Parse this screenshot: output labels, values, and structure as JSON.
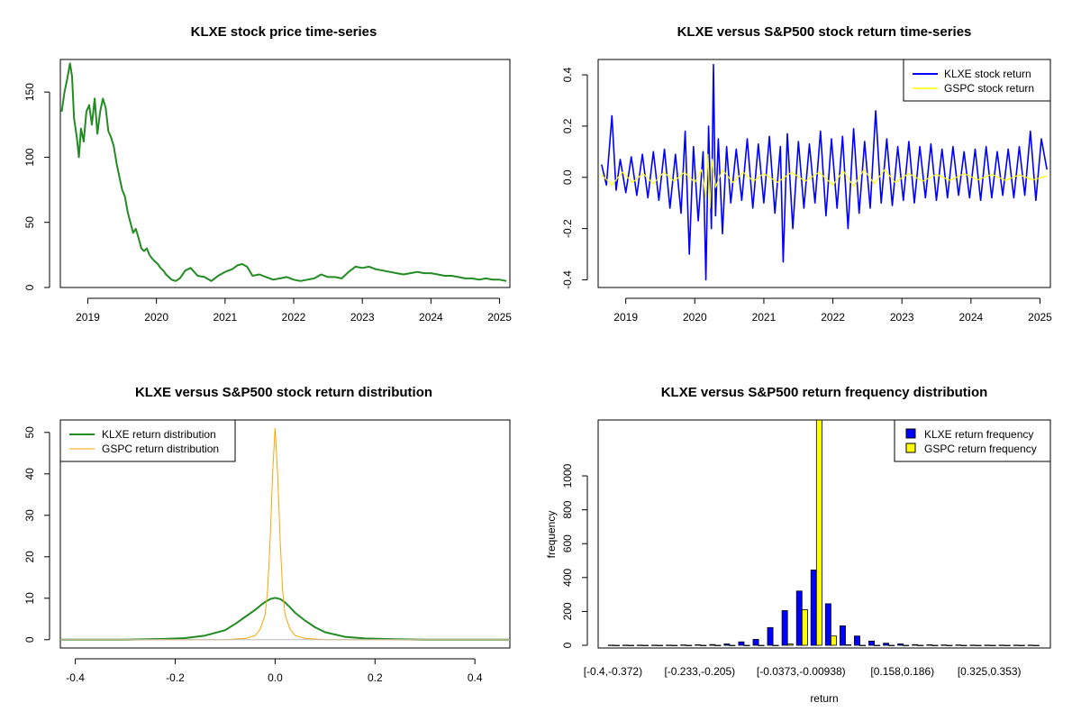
{
  "chart_data": [
    {
      "type": "line",
      "title": "KLXE stock price time-series",
      "xlabel": "",
      "ylabel": "",
      "x_tick_labels": [
        "2019",
        "2020",
        "2021",
        "2022",
        "2023",
        "2024",
        "2025"
      ],
      "x_tick_values": [
        2019,
        2020,
        2021,
        2022,
        2023,
        2024,
        2025
      ],
      "y_tick_labels": [
        "0",
        "50",
        "100",
        "150"
      ],
      "y_tick_values": [
        0,
        50,
        100,
        150
      ],
      "xlim": [
        2018.6,
        2025.15
      ],
      "ylim": [
        0,
        175
      ],
      "series": [
        {
          "color": "#228B22",
          "x": [
            2018.62,
            2018.66,
            2018.7,
            2018.74,
            2018.77,
            2018.8,
            2018.84,
            2018.87,
            2018.9,
            2018.94,
            2018.98,
            2019.02,
            2019.06,
            2019.1,
            2019.14,
            2019.18,
            2019.22,
            2019.26,
            2019.3,
            2019.34,
            2019.38,
            2019.42,
            2019.46,
            2019.5,
            2019.54,
            2019.58,
            2019.62,
            2019.66,
            2019.7,
            2019.74,
            2019.78,
            2019.82,
            2019.86,
            2019.9,
            2019.94,
            2019.98,
            2020.02,
            2020.06,
            2020.1,
            2020.14,
            2020.18,
            2020.22,
            2020.28,
            2020.34,
            2020.42,
            2020.5,
            2020.6,
            2020.7,
            2020.8,
            2020.9,
            2021.0,
            2021.1,
            2021.18,
            2021.25,
            2021.32,
            2021.4,
            2021.5,
            2021.6,
            2021.7,
            2021.8,
            2021.9,
            2022.0,
            2022.1,
            2022.2,
            2022.3,
            2022.4,
            2022.5,
            2022.6,
            2022.7,
            2022.8,
            2022.9,
            2023.0,
            2023.1,
            2023.2,
            2023.3,
            2023.4,
            2023.5,
            2023.6,
            2023.7,
            2023.8,
            2023.9,
            2024.0,
            2024.1,
            2024.2,
            2024.3,
            2024.4,
            2024.5,
            2024.6,
            2024.7,
            2024.8,
            2024.9,
            2025.0,
            2025.1
          ],
          "y": [
            135,
            150,
            160,
            172,
            162,
            130,
            115,
            100,
            122,
            112,
            135,
            140,
            125,
            145,
            118,
            135,
            145,
            138,
            120,
            115,
            108,
            95,
            85,
            75,
            70,
            58,
            50,
            42,
            45,
            38,
            30,
            28,
            30,
            25,
            22,
            20,
            18,
            15,
            13,
            10,
            8,
            6,
            5,
            7,
            13,
            15,
            9,
            8,
            5,
            9,
            12,
            14,
            17,
            18,
            16,
            9,
            10,
            8,
            6,
            7,
            8,
            6,
            5,
            6,
            7,
            10,
            8,
            8,
            7,
            12,
            16,
            15,
            16,
            14,
            13,
            12,
            11,
            10,
            11,
            12,
            11,
            11,
            10,
            9,
            9,
            8,
            7,
            7,
            6,
            7,
            6,
            6,
            5
          ]
        }
      ]
    },
    {
      "type": "line",
      "title": "KLXE versus S&P500 stock return time-series",
      "xlabel": "",
      "ylabel": "",
      "x_tick_labels": [
        "2019",
        "2020",
        "2021",
        "2022",
        "2023",
        "2024",
        "2025"
      ],
      "x_tick_values": [
        2019,
        2020,
        2021,
        2022,
        2023,
        2024,
        2025
      ],
      "y_tick_labels": [
        "-0.4",
        "-0.2",
        "0.0",
        "0.2",
        "0.4"
      ],
      "y_tick_values": [
        -0.4,
        -0.2,
        0.0,
        0.2,
        0.4
      ],
      "xlim": [
        2018.6,
        2025.15
      ],
      "ylim": [
        -0.43,
        0.46
      ],
      "legend": "top-right",
      "series": [
        {
          "name": "KLXE stock return",
          "color": "#0000FF",
          "x": [
            2018.65,
            2018.72,
            2018.8,
            2018.86,
            2018.92,
            2019.0,
            2019.08,
            2019.16,
            2019.24,
            2019.32,
            2019.4,
            2019.48,
            2019.56,
            2019.64,
            2019.72,
            2019.8,
            2019.86,
            2019.92,
            2019.98,
            2020.05,
            2020.12,
            2020.16,
            2020.2,
            2020.24,
            2020.27,
            2020.3,
            2020.34,
            2020.4,
            2020.46,
            2020.52,
            2020.6,
            2020.68,
            2020.76,
            2020.84,
            2020.92,
            2021.0,
            2021.08,
            2021.16,
            2021.24,
            2021.28,
            2021.34,
            2021.42,
            2021.5,
            2021.58,
            2021.66,
            2021.74,
            2021.82,
            2021.9,
            2021.98,
            2022.06,
            2022.14,
            2022.22,
            2022.3,
            2022.38,
            2022.46,
            2022.54,
            2022.62,
            2022.7,
            2022.78,
            2022.86,
            2022.94,
            2023.02,
            2023.1,
            2023.18,
            2023.26,
            2023.34,
            2023.42,
            2023.5,
            2023.58,
            2023.66,
            2023.74,
            2023.82,
            2023.9,
            2023.98,
            2024.06,
            2024.14,
            2024.22,
            2024.3,
            2024.38,
            2024.46,
            2024.54,
            2024.62,
            2024.7,
            2024.78,
            2024.86,
            2024.94,
            2025.02,
            2025.1
          ],
          "y": [
            0.05,
            -0.03,
            0.24,
            -0.05,
            0.07,
            -0.06,
            0.08,
            -0.07,
            0.09,
            -0.08,
            0.1,
            -0.09,
            0.11,
            -0.12,
            0.09,
            -0.14,
            0.18,
            -0.3,
            0.12,
            -0.17,
            0.1,
            -0.4,
            0.2,
            -0.2,
            0.44,
            -0.15,
            0.15,
            -0.22,
            0.12,
            -0.1,
            0.11,
            -0.09,
            0.15,
            -0.12,
            0.13,
            -0.1,
            0.16,
            -0.14,
            0.12,
            -0.33,
            0.17,
            -0.2,
            0.14,
            -0.12,
            0.13,
            -0.1,
            0.18,
            -0.15,
            0.15,
            -0.12,
            0.16,
            -0.2,
            0.19,
            -0.14,
            0.14,
            -0.12,
            0.26,
            -0.1,
            0.15,
            -0.11,
            0.12,
            -0.09,
            0.14,
            -0.1,
            0.12,
            -0.08,
            0.13,
            -0.09,
            0.11,
            -0.08,
            0.12,
            -0.07,
            0.1,
            -0.08,
            0.11,
            -0.09,
            0.12,
            -0.08,
            0.1,
            -0.07,
            0.11,
            -0.08,
            0.12,
            -0.07,
            0.18,
            -0.09,
            0.15,
            0.03
          ]
        },
        {
          "name": "GSPC stock return",
          "color": "#FFFF00",
          "x": [
            2018.65,
            2018.8,
            2018.95,
            2019.1,
            2019.25,
            2019.4,
            2019.55,
            2019.7,
            2019.85,
            2020.0,
            2020.1,
            2020.16,
            2020.19,
            2020.22,
            2020.25,
            2020.3,
            2020.4,
            2020.55,
            2020.7,
            2020.85,
            2021.0,
            2021.2,
            2021.4,
            2021.6,
            2021.8,
            2022.0,
            2022.15,
            2022.3,
            2022.45,
            2022.6,
            2022.75,
            2022.9,
            2023.1,
            2023.3,
            2023.5,
            2023.7,
            2023.9,
            2024.1,
            2024.3,
            2024.5,
            2024.7,
            2024.9,
            2025.1
          ],
          "y": [
            0.01,
            -0.03,
            0.02,
            -0.02,
            0.015,
            -0.025,
            0.02,
            -0.015,
            0.02,
            -0.02,
            0.03,
            -0.08,
            0.09,
            -0.12,
            0.07,
            -0.04,
            0.03,
            -0.02,
            0.02,
            -0.015,
            0.015,
            -0.02,
            0.02,
            -0.015,
            0.02,
            -0.03,
            0.025,
            -0.035,
            0.03,
            -0.025,
            0.03,
            -0.02,
            0.015,
            -0.015,
            0.012,
            -0.012,
            0.015,
            -0.01,
            0.012,
            -0.012,
            0.01,
            -0.01,
            0.005
          ]
        }
      ]
    },
    {
      "type": "line",
      "title": "KLXE versus S&P500 stock return distribution",
      "xlabel": "",
      "ylabel": "",
      "x_tick_labels": [
        "-0.4",
        "-0.2",
        "0.0",
        "0.2",
        "0.4"
      ],
      "x_tick_values": [
        -0.4,
        -0.2,
        0.0,
        0.2,
        0.4
      ],
      "y_tick_labels": [
        "0",
        "10",
        "20",
        "30",
        "40",
        "50"
      ],
      "y_tick_values": [
        0,
        10,
        20,
        30,
        40,
        50
      ],
      "xlim": [
        -0.43,
        0.47
      ],
      "ylim": [
        -2,
        53
      ],
      "legend": "top-left",
      "series": [
        {
          "name": "KLXE return distribution",
          "color": "#228B22",
          "x": [
            -0.43,
            -0.3,
            -0.22,
            -0.18,
            -0.14,
            -0.1,
            -0.08,
            -0.06,
            -0.04,
            -0.03,
            -0.02,
            -0.01,
            0.0,
            0.01,
            0.02,
            0.03,
            0.04,
            0.06,
            0.08,
            0.1,
            0.14,
            0.18,
            0.24,
            0.3,
            0.47
          ],
          "y": [
            0,
            0,
            0.2,
            0.4,
            1.0,
            2.3,
            3.8,
            5.5,
            7.2,
            8.2,
            9.1,
            9.8,
            10.1,
            9.8,
            9.0,
            7.8,
            6.5,
            4.6,
            3.0,
            1.8,
            0.7,
            0.3,
            0.1,
            0,
            0
          ]
        },
        {
          "name": "GSPC return distribution",
          "color": "#FFA500",
          "x": [
            -0.43,
            -0.1,
            -0.06,
            -0.04,
            -0.03,
            -0.02,
            -0.015,
            -0.01,
            -0.005,
            0.0,
            0.005,
            0.01,
            0.015,
            0.02,
            0.03,
            0.04,
            0.06,
            0.1,
            0.47
          ],
          "y": [
            0,
            0,
            0.3,
            1.0,
            2.5,
            6.0,
            12.0,
            24.0,
            40.0,
            51.0,
            40.0,
            24.0,
            12.0,
            6.0,
            2.5,
            1.0,
            0.3,
            0,
            0
          ]
        }
      ]
    },
    {
      "type": "bar",
      "title": "KLXE versus S&P500 return frequency distribution",
      "xlabel": "return",
      "ylabel": "frequency",
      "category_labels_shown": [
        "[-0.4,-0.372)",
        "[-0.233,-0.205)",
        "[-0.0373,-0.00938)",
        "[0.158,0.186)",
        "[0.325,0.353)"
      ],
      "category_label_positions": [
        0,
        6,
        13,
        20,
        26
      ],
      "y_tick_labels": [
        "0",
        "200",
        "400",
        "600",
        "800",
        "1000"
      ],
      "y_tick_values": [
        0,
        200,
        400,
        600,
        800,
        1000
      ],
      "ylim": [
        0,
        1330
      ],
      "legend": "top-right",
      "series": [
        {
          "name": "KLXE return frequency",
          "color": "#0000FF",
          "values": [
            1,
            1,
            1,
            1,
            1,
            2,
            3,
            4,
            8,
            20,
            35,
            105,
            205,
            320,
            445,
            245,
            115,
            55,
            25,
            12,
            8,
            4,
            3,
            2,
            2,
            1,
            1,
            1,
            1,
            1
          ]
        },
        {
          "name": "GSPC return frequency",
          "color": "#FFFF00",
          "values": [
            0,
            0,
            0,
            0,
            0,
            0,
            0,
            0,
            0,
            0,
            0,
            0,
            8,
            210,
            1330,
            55,
            3,
            0,
            0,
            0,
            0,
            0,
            0,
            0,
            0,
            0,
            0,
            0,
            0,
            0
          ]
        }
      ]
    }
  ]
}
